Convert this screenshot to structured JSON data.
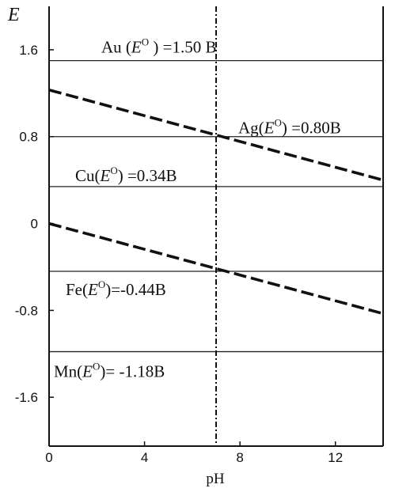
{
  "chart_data": {
    "type": "line",
    "xlabel": "pH",
    "ylabel": "E",
    "xlim": [
      0,
      14
    ],
    "ylim": [
      -2.05,
      2.0
    ],
    "xticks": [
      0,
      4,
      8,
      12
    ],
    "xtick_labels": [
      "0",
      "4",
      "8",
      "12"
    ],
    "yticks": [
      1.6,
      0.8,
      0,
      -0.8,
      -1.6
    ],
    "ytick_labels": [
      "1.6",
      "0.8",
      "0",
      "-0.8",
      "-1.6"
    ],
    "vertical_marker": {
      "x": 7,
      "style": "dash-dot"
    },
    "series": [
      {
        "style": "dashed",
        "x": [
          0,
          14
        ],
        "y": [
          1.23,
          0.4
        ]
      },
      {
        "style": "dashed",
        "x": [
          0,
          14
        ],
        "y": [
          0.0,
          -0.83
        ]
      }
    ],
    "reference_lines": [
      {
        "metal": "Au",
        "y": 1.5,
        "label": {
          "prefix": "Au (",
          "var": "E",
          "sup": "O",
          "suffix": " ) =1.50 B"
        }
      },
      {
        "metal": "Ag",
        "y": 0.8,
        "label": {
          "prefix": "Ag(",
          "var": "E",
          "sup": "O",
          "suffix": ") =0.80B"
        }
      },
      {
        "metal": "Cu",
        "y": 0.34,
        "label": {
          "prefix": "Cu(",
          "var": "E",
          "sup": "O",
          "suffix": ") =0.34B"
        }
      },
      {
        "metal": "Fe",
        "y": -0.44,
        "label": {
          "prefix": "Fe(",
          "var": "E",
          "sup": "O",
          "suffix": ")=-0.44B"
        }
      },
      {
        "metal": "Mn",
        "y": -1.18,
        "label": {
          "prefix": "Mn(",
          "var": "E",
          "sup": "O",
          "suffix": ")= -1.18B"
        }
      }
    ]
  }
}
